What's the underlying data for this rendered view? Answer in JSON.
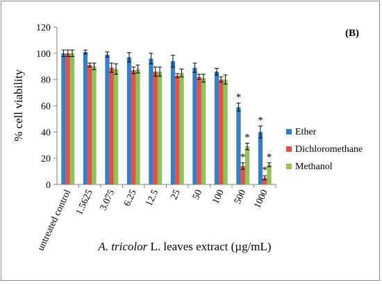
{
  "chart_data": {
    "type": "bar",
    "panel_label": "(B)",
    "title": "",
    "xlabel_italic": "A. tricolor",
    "xlabel_rest": " L. leaves extract (µg/mL)",
    "ylabel": "% cell viability",
    "ylim": [
      0,
      120
    ],
    "yticks": [
      0,
      20,
      40,
      60,
      80,
      100,
      120
    ],
    "grid": false,
    "legend_position": "right",
    "categories": [
      "untreated control",
      "1.5625",
      "3.075",
      "6.25",
      "12.5",
      "25",
      "50",
      "100",
      "500",
      "1000"
    ],
    "series": [
      {
        "name": "Ether",
        "color": "#3a7fc1",
        "values": [
          100,
          101,
          99,
          97,
          96,
          94,
          89,
          86,
          59,
          40
        ],
        "errors": [
          2.5,
          1.5,
          2,
          3.5,
          4,
          4.5,
          3.5,
          2.5,
          3,
          4.5
        ],
        "annotations": [
          "",
          "",
          "",
          "",
          "",
          "",
          "",
          "",
          "*",
          "*"
        ]
      },
      {
        "name": "Dichloromethane",
        "color": "#e0524d",
        "values": [
          100,
          91,
          89,
          87,
          86,
          83,
          82,
          80,
          14,
          5
        ],
        "errors": [
          2.5,
          1.5,
          3.5,
          2.5,
          3.5,
          1.5,
          2,
          2,
          2.5,
          1.5
        ],
        "annotations": [
          "",
          "",
          "",
          "",
          "",
          "",
          "",
          "",
          "*",
          "*"
        ]
      },
      {
        "name": "Methanol",
        "color": "#92c157",
        "values": [
          100,
          90,
          88,
          88,
          86,
          85,
          81,
          80,
          29,
          15
        ],
        "errors": [
          2.5,
          2.5,
          4,
          3,
          3.5,
          3,
          3,
          3.5,
          2.5,
          1.5
        ],
        "annotations": [
          "",
          "",
          "",
          "",
          "",
          "",
          "",
          "",
          "*",
          "*"
        ]
      }
    ]
  }
}
